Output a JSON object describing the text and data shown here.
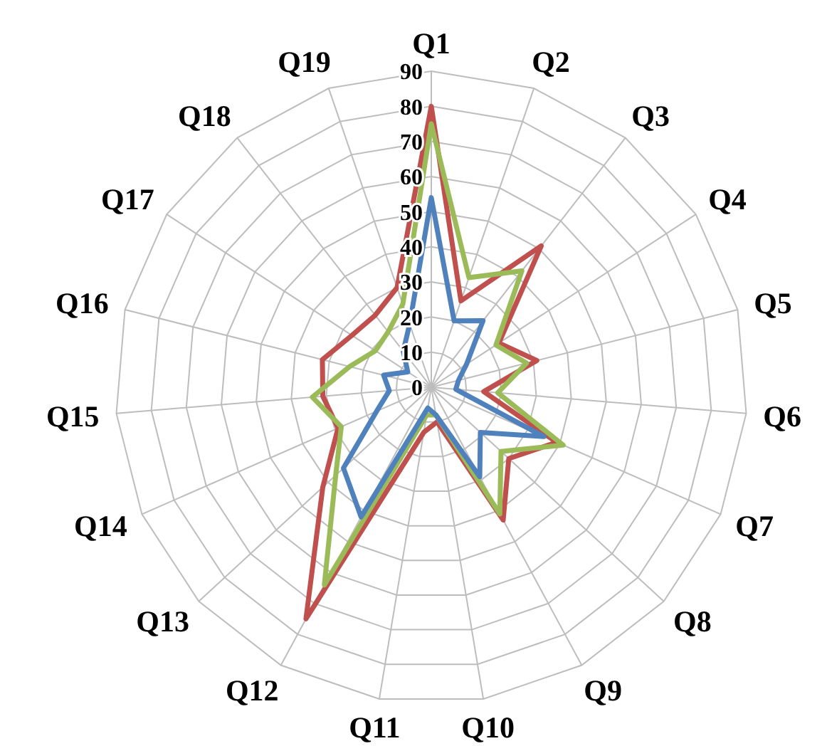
{
  "chart_data": {
    "type": "radar",
    "categories": [
      "Q1",
      "Q2",
      "Q3",
      "Q4",
      "Q5",
      "Q6",
      "Q7",
      "Q8",
      "Q9",
      "Q10",
      "Q11",
      "Q12",
      "Q13",
      "Q14",
      "Q15",
      "Q16",
      "Q17",
      "Q18",
      "Q19"
    ],
    "series": [
      {
        "color": "#c0504d",
        "values": [
          80,
          26,
          51,
          23,
          31,
          15,
          39,
          30,
          43,
          10,
          13,
          75,
          42,
          29,
          31,
          32,
          27,
          26,
          30
        ]
      },
      {
        "color": "#9bbb59",
        "values": [
          75,
          33,
          42,
          22,
          28,
          19,
          41,
          27,
          41,
          8,
          8,
          64,
          37,
          28,
          34,
          24,
          19,
          20,
          25
        ]
      },
      {
        "color": "#4f81bd",
        "values": [
          54,
          20,
          24,
          12,
          8,
          7,
          35,
          19,
          29,
          8,
          6,
          42,
          34,
          17,
          12,
          14,
          8,
          13,
          19
        ]
      }
    ],
    "ylim": [
      0,
      90
    ],
    "yticks": [
      0,
      10,
      20,
      30,
      40,
      50,
      60,
      70,
      80,
      90
    ],
    "grid": true,
    "legend": false,
    "marker": "none",
    "line_style": "solid"
  }
}
